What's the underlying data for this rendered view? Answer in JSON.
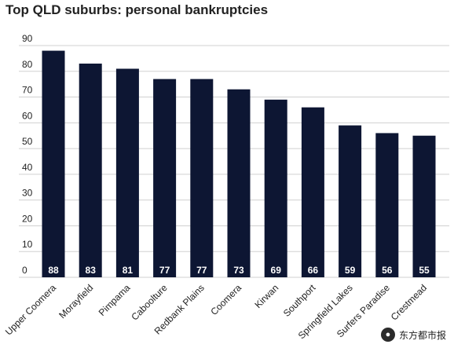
{
  "title": "Top QLD suburbs: personal bankruptcies",
  "watermark": {
    "text": "东方都市报",
    "icon": "speech-bubble-logo-icon"
  },
  "colors": {
    "bar": "#0d1633",
    "bar_label": "#ffffff",
    "grid": "#d0d0d0",
    "text": "#222222"
  },
  "chart_data": {
    "type": "bar",
    "title": "Top QLD suburbs: personal bankruptcies",
    "xlabel": "",
    "ylabel": "",
    "ylim": [
      0,
      90
    ],
    "yticks": [
      0,
      10,
      20,
      30,
      40,
      50,
      60,
      70,
      80,
      90
    ],
    "grid": true,
    "legend": "none",
    "categories": [
      "Upper Coomera",
      "Morayfield",
      "Pimpama",
      "Caboolture",
      "Redbank Plains",
      "Coomera",
      "Kirwan",
      "Southport",
      "Springfield Lakes",
      "Surfers Paradise",
      "Crestmead"
    ],
    "values": [
      88,
      83,
      81,
      77,
      77,
      73,
      69,
      66,
      59,
      56,
      55
    ],
    "data_labels": [
      "88",
      "83",
      "81",
      "77",
      "77",
      "73",
      "69",
      "66",
      "59",
      "56",
      "55"
    ]
  }
}
